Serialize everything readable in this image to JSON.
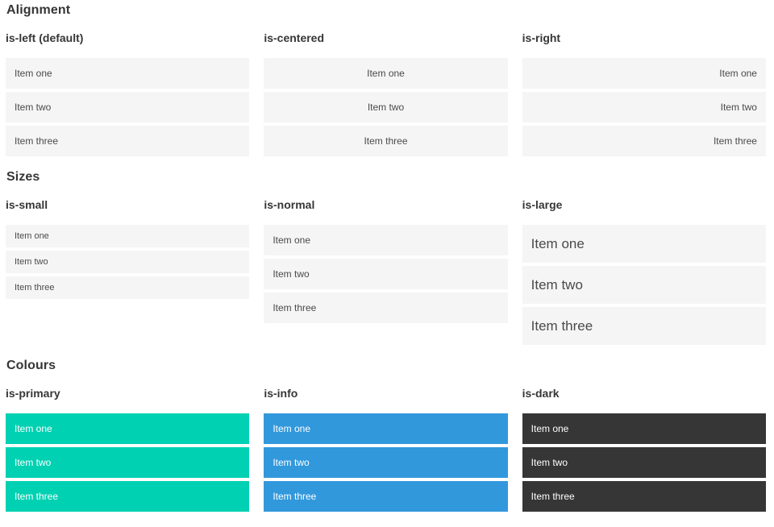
{
  "colors": {
    "item_bg": "#f5f5f5",
    "item_text": "#4a4a4a",
    "heading_text": "#363636",
    "primary": "#00d1b2",
    "info": "#3298dc",
    "dark": "#363636",
    "colored_item_text": "#ffffff"
  },
  "sections": [
    {
      "title": "Alignment",
      "columns": [
        {
          "subtitle": "is-left (default)",
          "items": [
            "Item one",
            "Item two",
            "Item three"
          ]
        },
        {
          "subtitle": "is-centered",
          "items": [
            "Item one",
            "Item two",
            "Item three"
          ]
        },
        {
          "subtitle": "is-right",
          "items": [
            "Item one",
            "Item two",
            "Item three"
          ]
        }
      ]
    },
    {
      "title": "Sizes",
      "columns": [
        {
          "subtitle": "is-small",
          "items": [
            "Item one",
            "Item two",
            "Item three"
          ]
        },
        {
          "subtitle": "is-normal",
          "items": [
            "Item one",
            "Item two",
            "Item three"
          ]
        },
        {
          "subtitle": "is-large",
          "items": [
            "Item one",
            "Item two",
            "Item three"
          ]
        }
      ]
    },
    {
      "title": "Colours",
      "columns": [
        {
          "subtitle": "is-primary",
          "items": [
            "Item one",
            "Item two",
            "Item three"
          ]
        },
        {
          "subtitle": "is-info",
          "items": [
            "Item one",
            "Item two",
            "Item three"
          ]
        },
        {
          "subtitle": "is-dark",
          "items": [
            "Item one",
            "Item two",
            "Item three"
          ]
        }
      ]
    }
  ]
}
